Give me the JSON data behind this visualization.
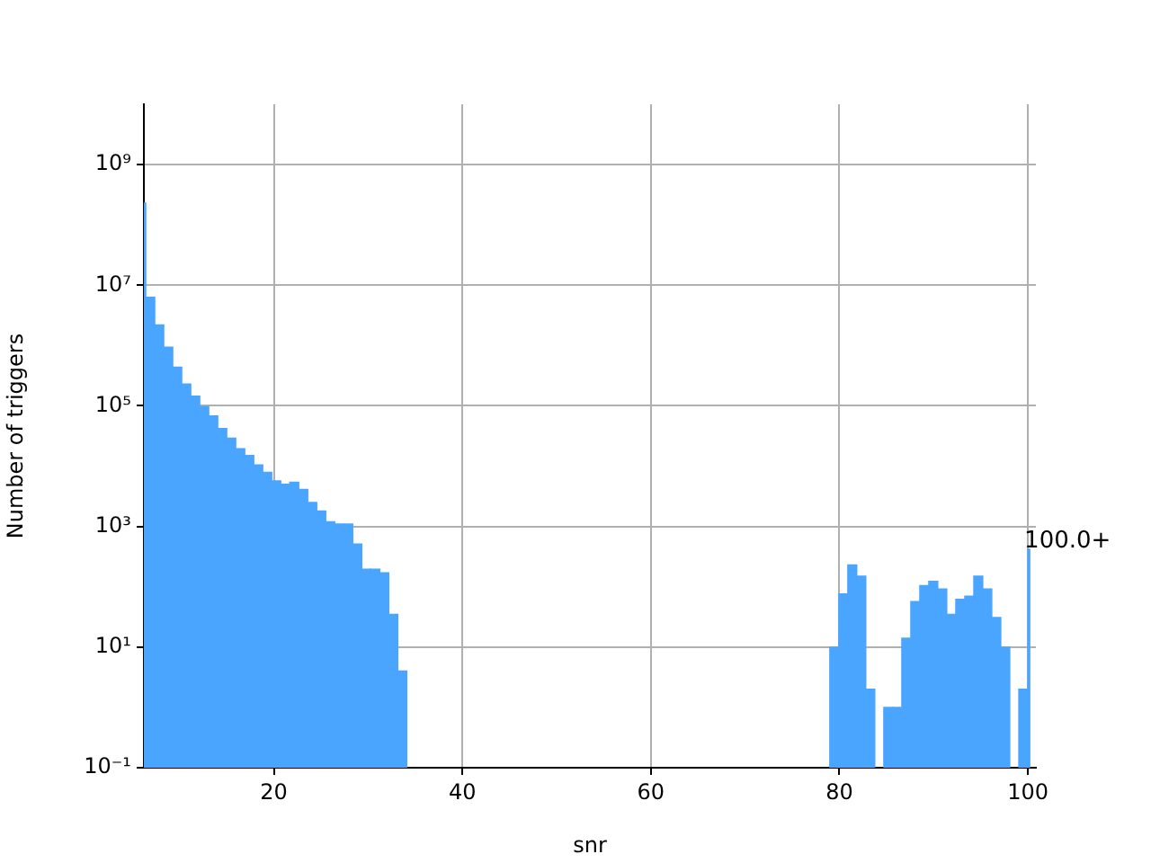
{
  "chart_data": {
    "type": "histogram",
    "xlabel": "snr",
    "ylabel": "Number of triggers",
    "color": "#4aa5ff",
    "bins": [
      6.2,
      6.4,
      7.355,
      8.31,
      9.265,
      10.22,
      11.175,
      12.13,
      13.085,
      14.04,
      14.995,
      15.95,
      16.905,
      17.86,
      18.815,
      19.77,
      20.725,
      21.68,
      22.635,
      23.59,
      24.545,
      25.5,
      26.455,
      27.41,
      28.365,
      29.32,
      30.275,
      31.23,
      32.185,
      33.14,
      34.095,
      78.98,
      79.935,
      80.89,
      81.845,
      82.8,
      83.755,
      84.71,
      85.665,
      86.62,
      87.575,
      88.53,
      89.485,
      90.44,
      91.395,
      92.35,
      93.305,
      94.26,
      95.215,
      96.17,
      97.125,
      98.08,
      99.035,
      100,
      100.2
    ],
    "values": [
      230000000,
      6300000,
      2200000,
      940000,
      440000,
      230000,
      145000,
      98000,
      68000,
      42000,
      29000,
      19500,
      15000,
      10500,
      7900,
      5700,
      5000,
      5400,
      4100,
      2500,
      1800,
      1200,
      1100,
      1100,
      510,
      196,
      196,
      170,
      35,
      4,
      null,
      10,
      76,
      230,
      150,
      2,
      null,
      1,
      1,
      14,
      57,
      105,
      123,
      92,
      35,
      62,
      70,
      150,
      92,
      31,
      10,
      null,
      2,
      420
    ],
    "xlim": [
      6.2,
      100.85
    ],
    "xticks": [
      20,
      40,
      60,
      80,
      100
    ],
    "ylim": [
      0.1,
      10000000000
    ],
    "yticks": [
      {
        "value": 0.1,
        "label": "10⁻¹"
      },
      {
        "value": 10,
        "label": "10¹"
      },
      {
        "value": 1000,
        "label": "10³"
      },
      {
        "value": 100000,
        "label": "10⁵"
      },
      {
        "value": 10000000,
        "label": "10⁷"
      },
      {
        "value": 1000000000,
        "label": "10⁹"
      }
    ],
    "log": "y",
    "grid": true,
    "legend": false,
    "annotations": [
      {
        "text": "100.0+",
        "x": 100,
        "y": 420
      }
    ]
  }
}
